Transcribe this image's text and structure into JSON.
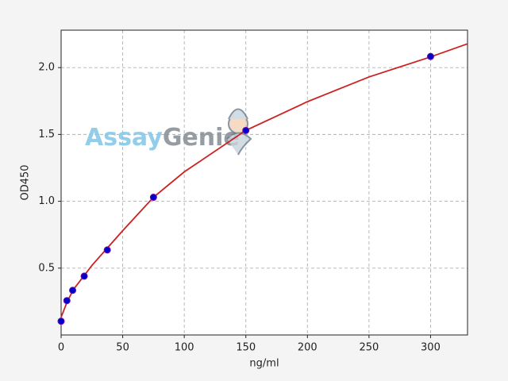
{
  "chart_data": {
    "type": "scatter",
    "xlabel": "ng/ml",
    "ylabel": "OD450",
    "watermark": [
      "Assay",
      "Genie"
    ],
    "points": {
      "x": [
        0,
        4.69,
        9.38,
        18.75,
        37.5,
        75,
        150,
        300
      ],
      "y": [
        0.103,
        0.257,
        0.334,
        0.44,
        0.636,
        1.03,
        1.53,
        2.083
      ],
      "color": "#0000cc"
    },
    "fit": {
      "x": [
        0,
        5,
        10,
        25,
        50,
        75,
        100,
        150,
        200,
        250,
        300,
        330
      ],
      "y": [
        0.133,
        0.25,
        0.34,
        0.52,
        0.78,
        1.03,
        1.22,
        1.53,
        1.745,
        1.93,
        2.08,
        2.178
      ],
      "color": "#cc2222"
    },
    "xlim": [
      0,
      330
    ],
    "ylim": [
      0,
      2.28
    ],
    "xticks": [
      0,
      50,
      100,
      150,
      200,
      250,
      300
    ],
    "yticks": [
      0.5,
      {
        "value": 1.0,
        "label": "1.0"
      },
      1.5,
      {
        "value": 2.0,
        "label": "2.0"
      }
    ],
    "grid": true
  }
}
